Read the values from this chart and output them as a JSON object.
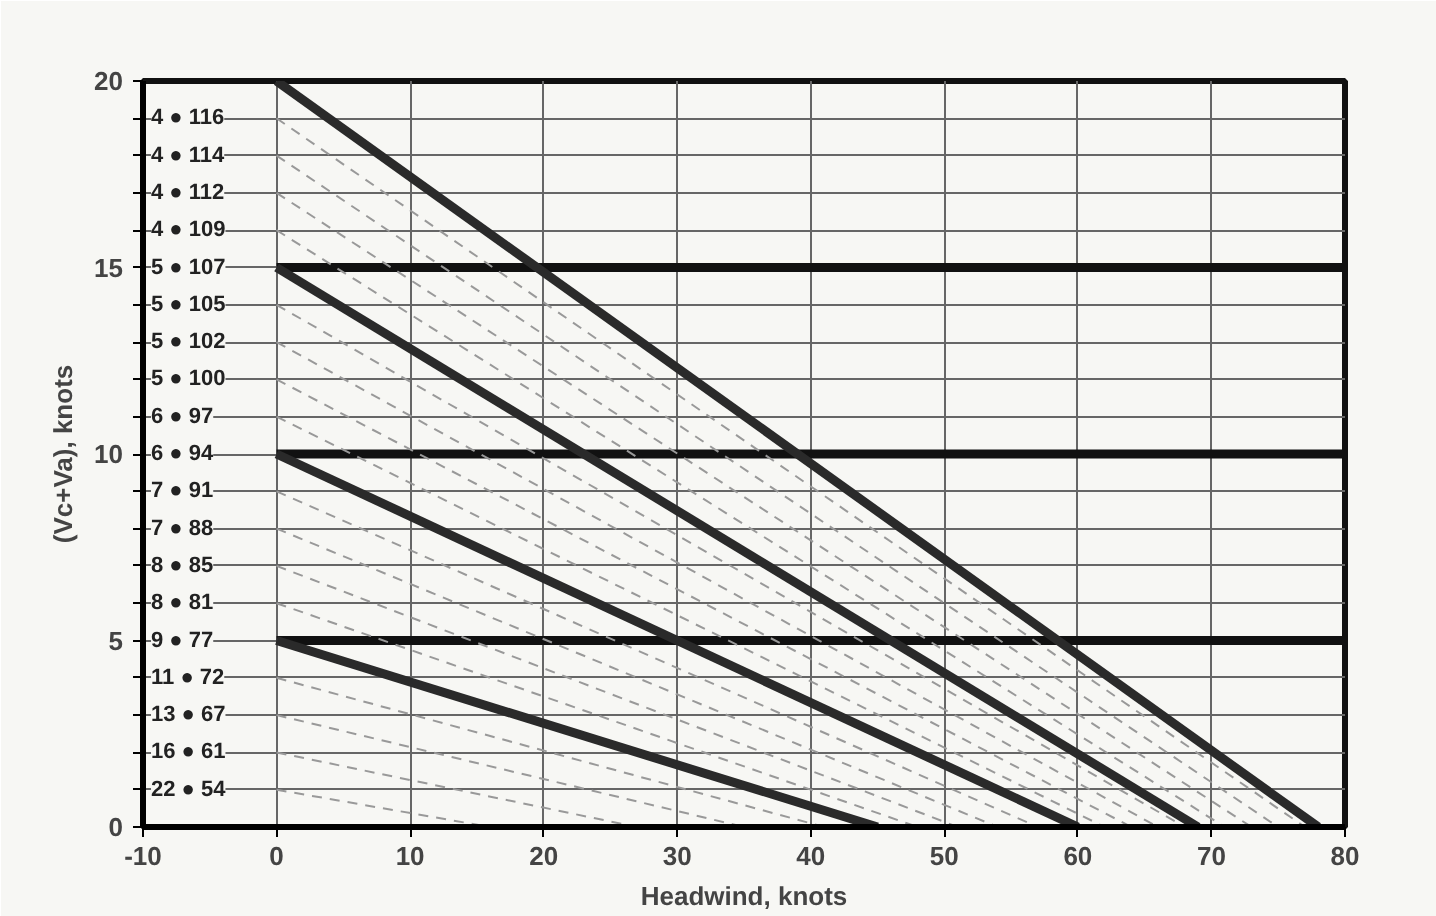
{
  "chart_data": {
    "type": "line",
    "xlabel": "Headwind, knots",
    "ylabel": "(Vc+Va), knots",
    "xlim": [
      -10,
      80
    ],
    "ylim": [
      0,
      20
    ],
    "xticks": [
      -10,
      0,
      10,
      20,
      30,
      40,
      50,
      60,
      70,
      80
    ],
    "yticks": [
      0,
      {
        "value": 1,
        "label": null
      },
      {
        "value": 2,
        "label": null
      },
      {
        "value": 3,
        "label": null
      },
      {
        "value": 4,
        "label": null
      },
      5,
      {
        "value": 6,
        "label": null
      },
      {
        "value": 7,
        "label": null
      },
      {
        "value": 8,
        "label": null
      },
      {
        "value": 9,
        "label": null
      },
      10,
      {
        "value": 11,
        "label": null
      },
      {
        "value": 12,
        "label": null
      },
      {
        "value": 13,
        "label": null
      },
      {
        "value": 14,
        "label": null
      },
      15,
      {
        "value": 16,
        "label": null
      },
      {
        "value": 17,
        "label": null
      },
      {
        "value": 18,
        "label": null
      },
      {
        "value": 19,
        "label": null
      },
      20
    ],
    "grid": true,
    "series": [
      {
        "x": [
          0,
          80
        ],
        "values": [
          5,
          5
        ],
        "color": "#111111",
        "line_style": "solid"
      },
      {
        "x": [
          0,
          80
        ],
        "values": [
          10,
          10
        ],
        "color": "#111111",
        "line_style": "solid"
      },
      {
        "x": [
          0,
          80
        ],
        "values": [
          15,
          15
        ],
        "color": "#111111",
        "line_style": "solid"
      },
      {
        "x": [
          0,
          16
        ],
        "values": [
          1,
          0
        ],
        "color": "#999999",
        "line_style": "dashed"
      },
      {
        "x": [
          0,
          27
        ],
        "values": [
          2,
          0
        ],
        "color": "#999999",
        "line_style": "dashed"
      },
      {
        "x": [
          0,
          35
        ],
        "values": [
          3,
          0
        ],
        "color": "#999999",
        "line_style": "dashed"
      },
      {
        "x": [
          0,
          41
        ],
        "values": [
          4,
          0
        ],
        "color": "#999999",
        "line_style": "dashed"
      },
      {
        "x": [
          0,
          48
        ],
        "values": [
          6,
          0
        ],
        "color": "#999999",
        "line_style": "dashed"
      },
      {
        "x": [
          0,
          51
        ],
        "values": [
          7,
          0
        ],
        "color": "#999999",
        "line_style": "dashed"
      },
      {
        "x": [
          0,
          54
        ],
        "values": [
          8,
          0
        ],
        "color": "#999999",
        "line_style": "dashed"
      },
      {
        "x": [
          0,
          57
        ],
        "values": [
          9,
          0
        ],
        "color": "#999999",
        "line_style": "dashed"
      },
      {
        "x": [
          0,
          62
        ],
        "values": [
          11,
          0
        ],
        "color": "#999999",
        "line_style": "dashed"
      },
      {
        "x": [
          0,
          64
        ],
        "values": [
          12,
          0
        ],
        "color": "#999999",
        "line_style": "dashed"
      },
      {
        "x": [
          0,
          66
        ],
        "values": [
          13,
          0
        ],
        "color": "#999999",
        "line_style": "dashed"
      },
      {
        "x": [
          0,
          68
        ],
        "values": [
          14,
          0
        ],
        "color": "#999999",
        "line_style": "dashed"
      },
      {
        "x": [
          0,
          71
        ],
        "values": [
          16,
          0
        ],
        "color": "#999999",
        "line_style": "dashed"
      },
      {
        "x": [
          0,
          73
        ],
        "values": [
          17,
          0
        ],
        "color": "#999999",
        "line_style": "dashed"
      },
      {
        "x": [
          0,
          75
        ],
        "values": [
          18,
          0
        ],
        "color": "#999999",
        "line_style": "dashed"
      },
      {
        "x": [
          0,
          77
        ],
        "values": [
          19,
          0
        ],
        "color": "#999999",
        "line_style": "dashed"
      },
      {
        "x": [
          0,
          45
        ],
        "values": [
          5,
          0
        ],
        "color": "#2a2a2a",
        "line_style": "solid"
      },
      {
        "x": [
          0,
          60
        ],
        "values": [
          10,
          0
        ],
        "color": "#2a2a2a",
        "line_style": "solid"
      },
      {
        "x": [
          0,
          69
        ],
        "values": [
          15,
          0
        ],
        "color": "#2a2a2a",
        "line_style": "solid"
      },
      {
        "x": [
          0,
          78
        ],
        "values": [
          20,
          0
        ],
        "color": "#2a2a2a",
        "line_style": "solid"
      }
    ],
    "annotations": [
      "4 ● 116",
      "4 ● 114",
      "4 ● 112",
      "4 ● 109",
      "5 ● 107",
      "5 ● 105",
      "5 ● 102",
      "5 ● 100",
      "6 ● 97",
      "6 ● 94",
      "7 ● 91",
      "7 ● 88",
      "8 ● 85",
      "8 ● 81",
      "9 ● 77",
      "11 ● 72",
      "13 ● 67",
      "16 ● 61",
      "22 ● 54"
    ]
  }
}
